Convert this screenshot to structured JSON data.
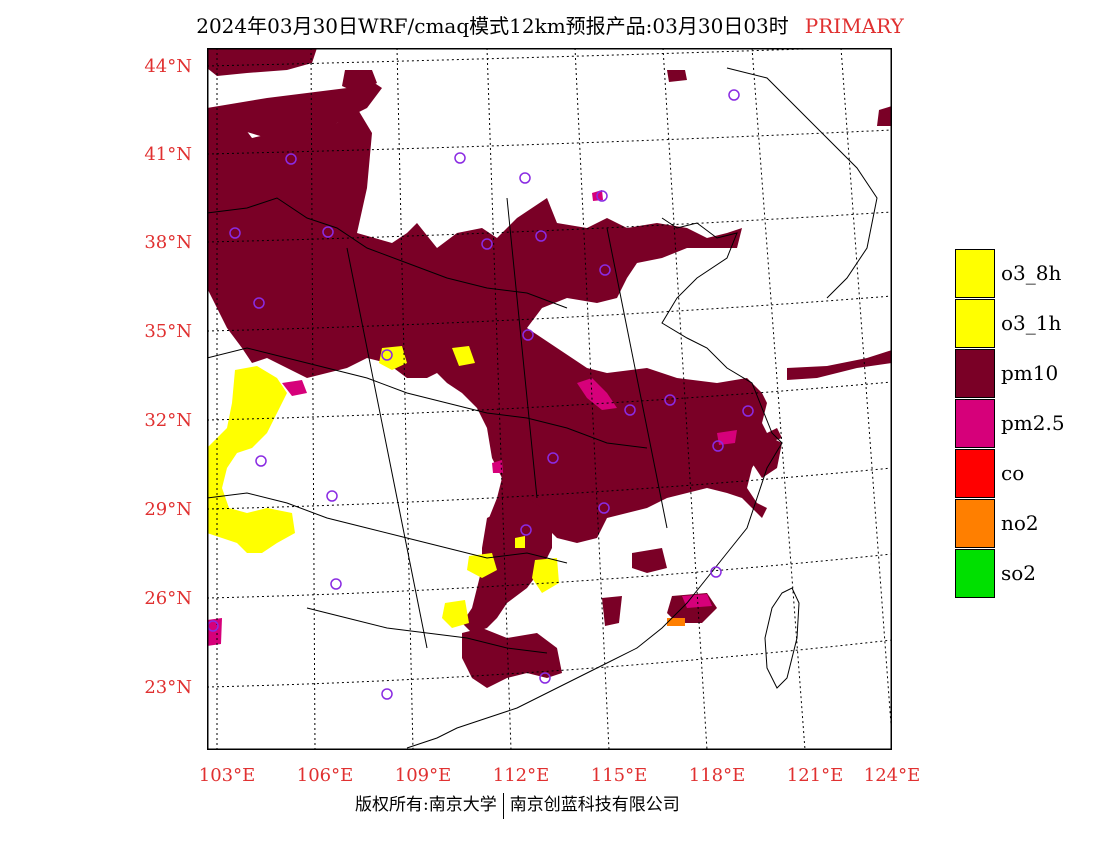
{
  "title": {
    "text": "2024年03月30日WRF/cmaq模式12km预报产品:03月30日03时",
    "tag": "PRIMARY"
  },
  "axes": {
    "lat_labels": [
      "44°N",
      "41°N",
      "38°N",
      "35°N",
      "32°N",
      "29°N",
      "26°N",
      "23°N"
    ],
    "lon_labels": [
      "103°E",
      "106°E",
      "109°E",
      "112°E",
      "115°E",
      "118°E",
      "121°E",
      "124°E"
    ]
  },
  "legend": {
    "items": [
      {
        "label": "o3_8h",
        "color": "#ffff00"
      },
      {
        "label": "o3_1h",
        "color": "#ffff00"
      },
      {
        "label": "pm10",
        "color": "#7a0026"
      },
      {
        "label": "pm2.5",
        "color": "#d6007a"
      },
      {
        "label": "co",
        "color": "#ff0000"
      },
      {
        "label": "no2",
        "color": "#ff7f00"
      },
      {
        "label": "so2",
        "color": "#00e000"
      }
    ]
  },
  "footer": {
    "left": "版权所有:南京大学",
    "right": "南京创蓝科技有限公司"
  },
  "colors": {
    "axis_label": "#e03030",
    "station_marker": "#8a2be2"
  }
}
